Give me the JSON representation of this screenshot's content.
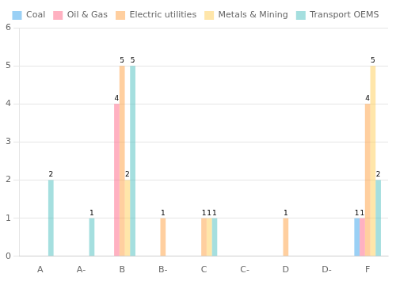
{
  "chart_data": {
    "type": "bar",
    "categories": [
      "A",
      "A-",
      "B",
      "B-",
      "C",
      "C-",
      "D",
      "D-",
      "F"
    ],
    "series": [
      {
        "name": "Coal",
        "values": [
          0,
          0,
          0,
          0,
          0,
          0,
          0,
          0,
          1
        ]
      },
      {
        "name": "Oil & Gas",
        "values": [
          0,
          0,
          4,
          0,
          0,
          0,
          0,
          0,
          1
        ]
      },
      {
        "name": "Electric utilities",
        "values": [
          0,
          0,
          5,
          1,
          1,
          0,
          1,
          0,
          4
        ]
      },
      {
        "name": "Metals & Mining",
        "values": [
          0,
          0,
          2,
          0,
          1,
          0,
          0,
          0,
          5
        ]
      },
      {
        "name": "Transport OEMS",
        "values": [
          2,
          1,
          5,
          0,
          1,
          0,
          0,
          0,
          2
        ]
      }
    ],
    "ylim": [
      0,
      6
    ],
    "yticks": [
      0,
      1,
      2,
      3,
      4,
      5,
      6
    ],
    "grid": true,
    "data_labels": true,
    "legend": "top"
  }
}
